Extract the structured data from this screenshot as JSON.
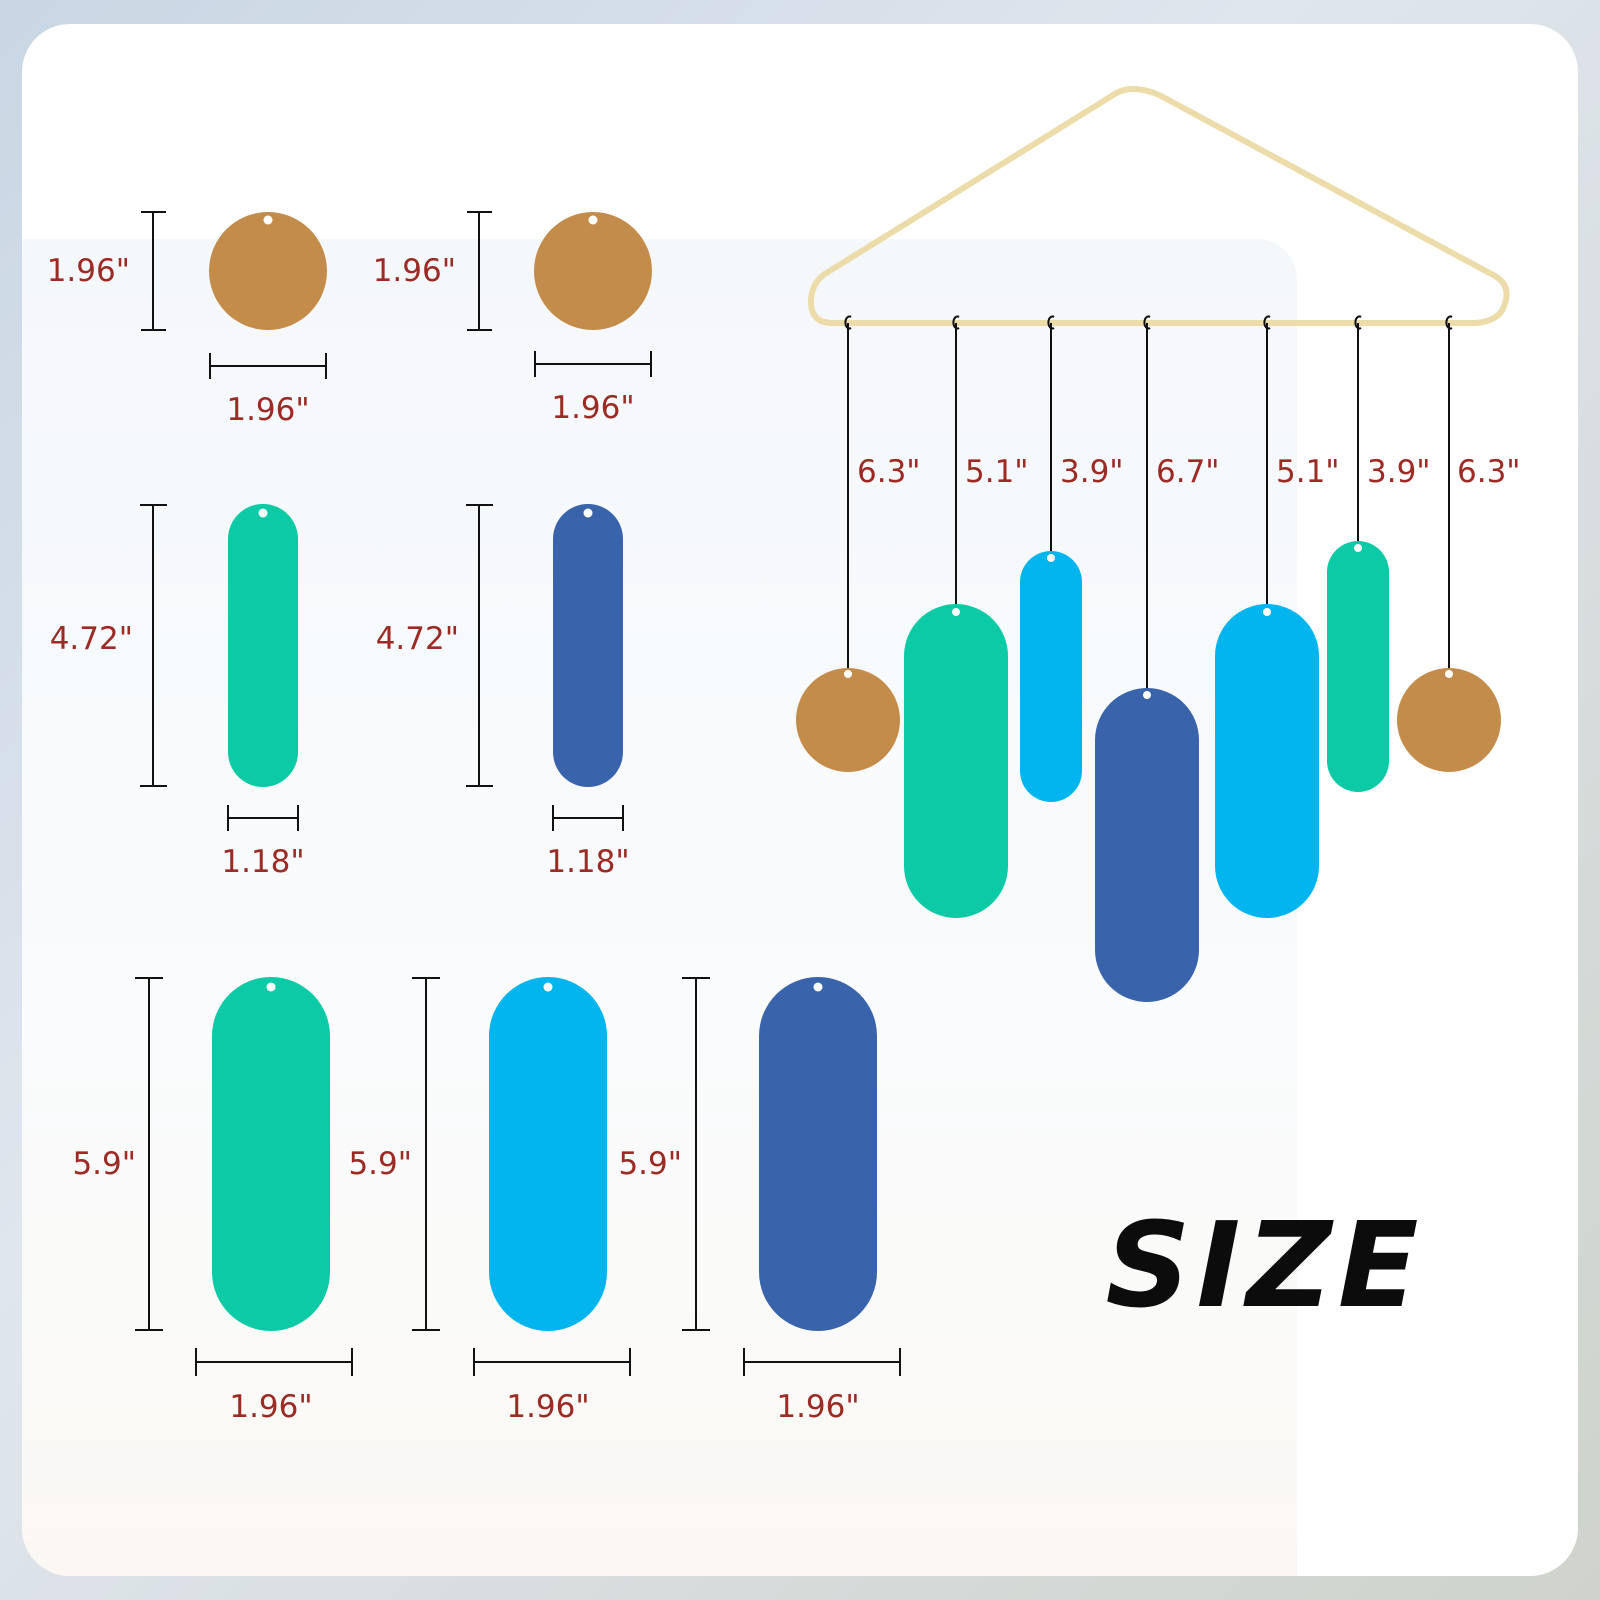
{
  "title": "SIZE",
  "colors": {
    "gold": "#c48c4a",
    "green": "#0bcaa5",
    "sky": "#03b5ee",
    "navy": "#3963aa",
    "dimension_text": "#9b2b24",
    "hanger": "#ecdcaa"
  },
  "pieces": {
    "circle_1": {
      "height": "1.96\"",
      "width": "1.96\""
    },
    "circle_2": {
      "height": "1.96\"",
      "width": "1.96\""
    },
    "small_green": {
      "height": "4.72\"",
      "width": "1.18\""
    },
    "small_navy": {
      "height": "4.72\"",
      "width": "1.18\""
    },
    "large_green": {
      "height": "5.9\"",
      "width": "1.96\""
    },
    "large_sky": {
      "height": "5.9\"",
      "width": "1.96\""
    },
    "large_navy": {
      "height": "5.9\"",
      "width": "1.96\""
    }
  },
  "strings": [
    "6.3\"",
    "5.1\"",
    "3.9\"",
    "6.7\"",
    "5.1\"",
    "3.9\"",
    "6.3\""
  ]
}
